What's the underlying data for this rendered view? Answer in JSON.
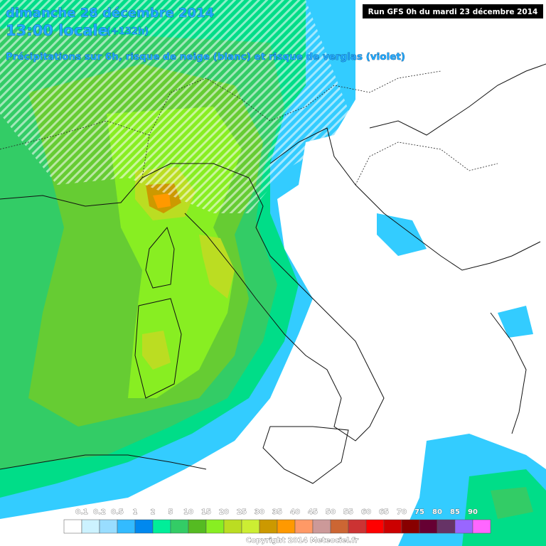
{
  "header": {
    "date": "dimanche 28 décembre 2014",
    "time": "13:00 locale",
    "lead": "(+132h)",
    "subtitle": "Précipitations sur 6h, risque de neige (blanc) et risque de verglas (violet)",
    "run": "Run GFS 0h du mardi 23 décembre 2014"
  },
  "legend": {
    "labels": [
      "0.1",
      "0.2",
      "0.5",
      "1",
      "2",
      "5",
      "10",
      "15",
      "20",
      "25",
      "30",
      "35",
      "40",
      "45",
      "50",
      "55",
      "60",
      "65",
      "70",
      "75",
      "80",
      "85",
      "90"
    ]
  },
  "footer": {
    "copyright": "Copyright 2014 Meteociel.fr"
  }
}
